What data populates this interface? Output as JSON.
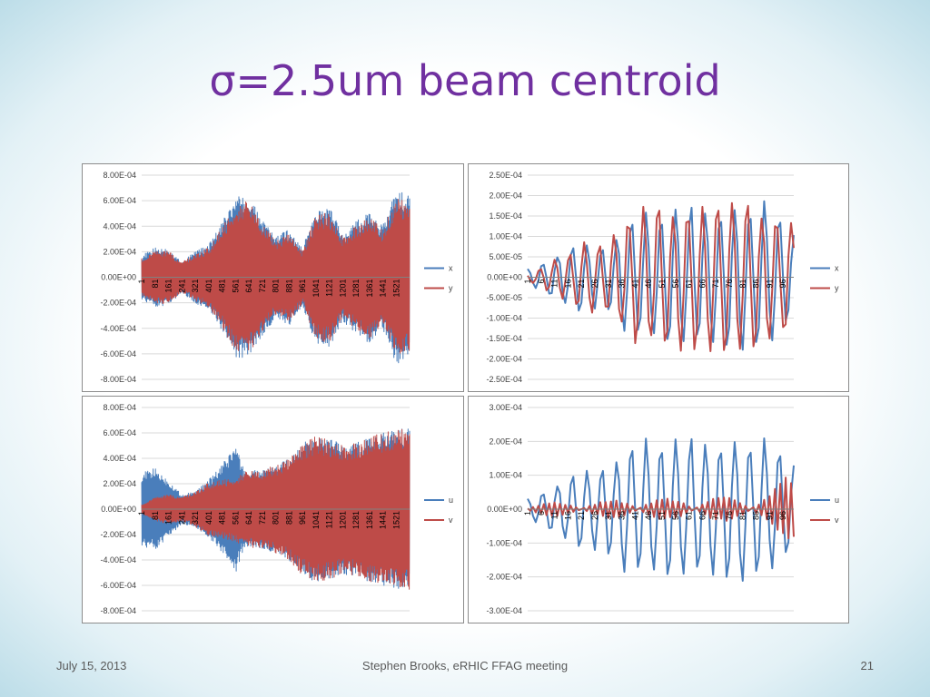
{
  "slide": {
    "title": "σ=2.5um beam centroid",
    "footer_date": "July 15, 2013",
    "footer_center": "Stephen Brooks, eRHIC FFAG meeting",
    "page_number": "21"
  },
  "colors": {
    "blue": "#4a7ebb",
    "red": "#be4b48",
    "title": "#7030a0"
  },
  "chart_data": [
    {
      "id": "tl",
      "type": "line",
      "ylim": [
        -0.0008,
        0.0008
      ],
      "yticks": [
        "8.00E-04",
        "6.00E-04",
        "4.00E-04",
        "2.00E-04",
        "0.00E+00",
        "-2.00E-04",
        "-4.00E-04",
        "-6.00E-04",
        "-8.00E-04"
      ],
      "xrange": [
        1,
        1600
      ],
      "xticks": [
        "1",
        "81",
        "161",
        "241",
        "321",
        "401",
        "481",
        "561",
        "641",
        "721",
        "801",
        "881",
        "961",
        "1041",
        "1121",
        "1201",
        "1281",
        "1361",
        "1441",
        "1521"
      ],
      "series": [
        {
          "name": "x",
          "color": "#4a7ebb",
          "envelope": {
            "x": [
              1,
              80,
              160,
              240,
              320,
              400,
              470,
              560,
              640,
              720,
              800,
              880,
              960,
              1040,
              1120,
              1200,
              1280,
              1360,
              1440,
              1520,
              1600
            ],
            "amp": [
              0.00015,
              0.0002,
              0.0002,
              0.0001,
              0.00018,
              0.00022,
              0.00035,
              0.00055,
              0.00055,
              0.0004,
              0.00028,
              0.00033,
              0.0002,
              0.00045,
              0.00048,
              0.0003,
              0.00038,
              0.00045,
              0.00035,
              0.0006,
              0.00055
            ]
          }
        },
        {
          "name": "y",
          "color": "#be4b48",
          "envelope": {
            "x": [
              1,
              80,
              160,
              240,
              320,
              400,
              470,
              560,
              640,
              720,
              800,
              880,
              960,
              1040,
              1120,
              1200,
              1280,
              1360,
              1440,
              1520,
              1600
            ],
            "amp": [
              0.00013,
              0.00018,
              0.00018,
              0.0001,
              0.00016,
              0.0002,
              0.00032,
              0.0005,
              0.00052,
              0.00038,
              0.00025,
              0.0003,
              0.00018,
              0.00042,
              0.00045,
              0.00028,
              0.00035,
              0.00042,
              0.00032,
              0.00055,
              0.0005
            ]
          }
        }
      ]
    },
    {
      "id": "tr",
      "type": "line",
      "ylim": [
        -0.00025,
        0.00025
      ],
      "yticks": [
        "2.50E-04",
        "2.00E-04",
        "1.50E-04",
        "1.00E-04",
        "5.00E-05",
        "0.00E+00",
        "-5.00E-05",
        "-1.00E-04",
        "-1.50E-04",
        "-2.00E-04",
        "-2.50E-04"
      ],
      "xrange": [
        1,
        100
      ],
      "xticks": [
        "1",
        "6",
        "11",
        "16",
        "21",
        "26",
        "31",
        "36",
        "41",
        "46",
        "51",
        "56",
        "61",
        "66",
        "71",
        "76",
        "81",
        "86",
        "91",
        "96"
      ],
      "series": [
        {
          "name": "x",
          "color": "#4a7ebb",
          "period": 5.5,
          "phase": 0.3,
          "envelope": {
            "x": [
              1,
              10,
              20,
              30,
              40,
              50,
              60,
              70,
              80,
              90,
              100
            ],
            "amp": [
              2e-05,
              5e-05,
              9e-05,
              8e-05,
              0.00015,
              0.00017,
              0.00019,
              0.00018,
              0.0002,
              0.00018,
              0.00012
            ]
          }
        },
        {
          "name": "y",
          "color": "#be4b48",
          "period": 5.5,
          "phase": 1.5,
          "envelope": {
            "x": [
              1,
              10,
              20,
              30,
              40,
              50,
              60,
              70,
              80,
              90,
              100
            ],
            "amp": [
              1e-05,
              4e-05,
              8e-05,
              9e-05,
              0.00017,
              0.00018,
              0.00018,
              0.00019,
              0.0002,
              0.00017,
              0.00015
            ]
          }
        }
      ]
    },
    {
      "id": "bl",
      "type": "line",
      "ylim": [
        -0.0008,
        0.0008
      ],
      "yticks": [
        "8.00E-04",
        "6.00E-04",
        "4.00E-04",
        "2.00E-04",
        "0.00E+00",
        "-2.00E-04",
        "-4.00E-04",
        "-6.00E-04",
        "-8.00E-04"
      ],
      "xrange": [
        1,
        1600
      ],
      "xticks": [
        "1",
        "81",
        "161",
        "241",
        "321",
        "401",
        "481",
        "561",
        "641",
        "721",
        "801",
        "881",
        "961",
        "1041",
        "1121",
        "1201",
        "1281",
        "1361",
        "1441",
        "1521"
      ],
      "series": [
        {
          "name": "u",
          "color": "#4a7ebb",
          "envelope": {
            "x": [
              1,
              80,
              160,
              240,
              320,
              400,
              480,
              560,
              600,
              640,
              720,
              800,
              880,
              960,
              1040,
              1120,
              1200,
              1280,
              1360,
              1440,
              1520,
              1600
            ],
            "amp": [
              0.00025,
              0.00028,
              0.0002,
              0.0001,
              0.00012,
              0.0002,
              0.0003,
              0.00045,
              0.0003,
              0.00026,
              0.00027,
              0.0003,
              0.00035,
              0.00045,
              0.0005,
              0.00048,
              0.00045,
              0.00045,
              0.0005,
              0.00052,
              0.00055,
              0.00055
            ]
          }
        },
        {
          "name": "v",
          "color": "#be4b48",
          "envelope": {
            "x": [
              1,
              80,
              160,
              240,
              320,
              400,
              480,
              560,
              600,
              640,
              720,
              800,
              880,
              960,
              1040,
              1120,
              1200,
              1280,
              1360,
              1440,
              1520,
              1600
            ],
            "amp": [
              3e-05,
              8e-05,
              0.0001,
              8e-05,
              0.00012,
              0.00018,
              0.0002,
              0.00022,
              0.00025,
              0.00026,
              0.00027,
              0.0003,
              0.00035,
              0.00045,
              0.0005,
              0.00048,
              0.00045,
              0.00045,
              0.0005,
              0.00052,
              0.00055,
              0.00055
            ]
          }
        }
      ]
    },
    {
      "id": "br",
      "type": "line",
      "ylim": [
        -0.0003,
        0.0003
      ],
      "yticks": [
        "3.00E-04",
        "2.00E-04",
        "1.00E-04",
        "0.00E+00",
        "-1.00E-04",
        "-2.00E-04",
        "-3.00E-04"
      ],
      "xrange": [
        1,
        100
      ],
      "xticks": [
        "1",
        "6",
        "11",
        "16",
        "21",
        "26",
        "31",
        "36",
        "41",
        "46",
        "51",
        "56",
        "61",
        "66",
        "71",
        "76",
        "81",
        "86",
        "91",
        "96"
      ],
      "series": [
        {
          "name": "u",
          "color": "#4a7ebb",
          "period": 5.5,
          "phase": 0.3,
          "envelope": {
            "x": [
              1,
              10,
              20,
              30,
              40,
              50,
              60,
              70,
              80,
              90,
              100
            ],
            "amp": [
              3e-05,
              7e-05,
              0.00012,
              0.00014,
              0.0002,
              0.00022,
              0.00023,
              0.00022,
              0.00024,
              0.0002,
              0.00015
            ]
          }
        },
        {
          "name": "v",
          "color": "#be4b48",
          "period": 2.1,
          "phase": 0.0,
          "envelope": {
            "x": [
              1,
              10,
              20,
              30,
              40,
              50,
              60,
              70,
              80,
              90,
              100
            ],
            "amp": [
              1.5e-05,
              2e-05,
              2e-05,
              2.5e-05,
              3e-05,
              3e-05,
              3e-05,
              3.5e-05,
              3.5e-05,
              4e-05,
              0.00012
            ]
          }
        }
      ]
    }
  ]
}
